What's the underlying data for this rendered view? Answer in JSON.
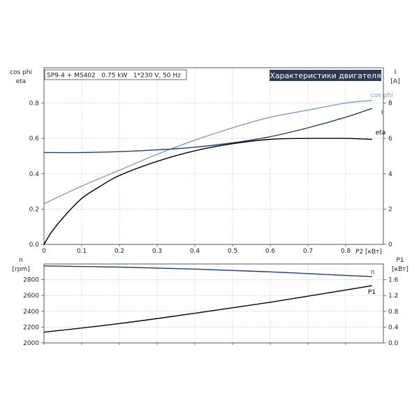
{
  "info_box": "SP9-4 + MS402   0.75 kW   1*230 V, 50 Hz",
  "badge": "Характеристики двигателя",
  "colors": {
    "cos_phi": "#7f9fbf",
    "current": "#1f3f66",
    "eta": "#000000",
    "n": "#1f3f66",
    "p1": "#000000",
    "badge_bg": "#2b3a4f"
  },
  "chart_data": [
    {
      "type": "line",
      "x_axis": {
        "label": "P2 [кВт]",
        "range": [
          0,
          0.9
        ],
        "ticks": [
          0,
          0.1,
          0.2,
          0.3,
          0.4,
          0.5,
          0.6,
          0.7,
          0.8
        ],
        "tick_labels": [
          "0",
          "0.1",
          "0.2",
          "0.3",
          "0.4",
          "0.5",
          "0.6",
          "0.7",
          "0.8"
        ]
      },
      "y_left": {
        "label_line1": "cos phi",
        "label_line2": "eta",
        "range": [
          0,
          1.0
        ],
        "ticks": [
          0,
          0.2,
          0.4,
          0.6,
          0.8
        ],
        "tick_labels": [
          "0.0",
          "0.2",
          "0.4",
          "0.6",
          "0.8"
        ]
      },
      "y_right": {
        "label_line1": "I",
        "label_line2": "[A]",
        "range": [
          0,
          10
        ],
        "ticks": [
          0,
          2,
          4,
          6,
          8
        ],
        "tick_labels": [
          "0",
          "2",
          "4",
          "6",
          "8"
        ]
      },
      "grid": true,
      "series": [
        {
          "name": "cos phi",
          "axis": "left",
          "x": [
            0,
            0.1,
            0.2,
            0.3,
            0.4,
            0.5,
            0.6,
            0.7,
            0.8,
            0.87
          ],
          "y": [
            0.23,
            0.33,
            0.42,
            0.51,
            0.59,
            0.66,
            0.72,
            0.76,
            0.8,
            0.815
          ]
        },
        {
          "name": "I",
          "axis": "right",
          "x": [
            0,
            0.1,
            0.2,
            0.3,
            0.4,
            0.5,
            0.6,
            0.7,
            0.8,
            0.87
          ],
          "y": [
            5.2,
            5.2,
            5.25,
            5.35,
            5.5,
            5.75,
            6.1,
            6.6,
            7.2,
            7.7
          ]
        },
        {
          "name": "eta",
          "axis": "left",
          "x": [
            0,
            0.02,
            0.05,
            0.1,
            0.15,
            0.2,
            0.3,
            0.4,
            0.5,
            0.6,
            0.7,
            0.8,
            0.87
          ],
          "y": [
            0,
            0.07,
            0.15,
            0.26,
            0.33,
            0.39,
            0.47,
            0.53,
            0.57,
            0.595,
            0.6,
            0.6,
            0.595
          ]
        }
      ]
    },
    {
      "type": "line",
      "x_axis": {
        "range": [
          0,
          0.9
        ]
      },
      "y_left": {
        "label_line1": "n",
        "label_line2": "[rpm]",
        "range": [
          2000,
          3000
        ],
        "ticks": [
          2000,
          2200,
          2400,
          2600,
          2800
        ],
        "tick_labels": [
          "2000",
          "2200",
          "2400",
          "2600",
          "2800"
        ]
      },
      "y_right": {
        "label_line1": "P1",
        "label_line2": "[кВт]",
        "range": [
          0,
          2.0
        ],
        "ticks": [
          0,
          0.4,
          0.8,
          1.2,
          1.6
        ],
        "tick_labels": [
          "0.0",
          "0.4",
          "0.8",
          "1.2",
          "1.6"
        ]
      },
      "grid": true,
      "series": [
        {
          "name": "n",
          "axis": "left",
          "x": [
            0,
            0.2,
            0.4,
            0.6,
            0.8,
            0.87
          ],
          "y": [
            2975,
            2960,
            2935,
            2900,
            2855,
            2840
          ]
        },
        {
          "name": "P1",
          "axis": "right",
          "x": [
            0,
            0.2,
            0.4,
            0.6,
            0.8,
            0.87
          ],
          "y": [
            0.27,
            0.49,
            0.75,
            1.03,
            1.34,
            1.45
          ]
        }
      ]
    }
  ]
}
